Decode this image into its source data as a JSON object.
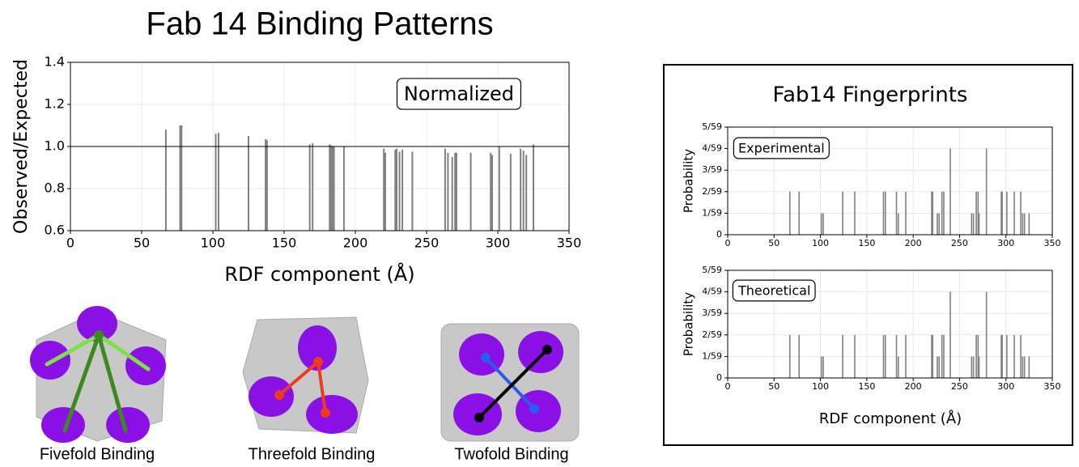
{
  "chart_data": [
    {
      "type": "bar",
      "title": "Fab 14 Binding Patterns",
      "y_label": "Observed/Expected",
      "x_label": "RDF component (Å)",
      "annotation": "Normalized",
      "color": "#808080",
      "grid": true,
      "reference_line": 1,
      "xlim": [
        0,
        350
      ],
      "xticks": [
        0,
        50,
        100,
        150,
        200,
        250,
        300,
        350
      ],
      "ylim": [
        0.6,
        1.4
      ],
      "yticks": [
        0.6,
        0.8,
        {
          "value": 1,
          "label": "1.0"
        },
        1.2,
        1.4
      ],
      "x": [
        67,
        77,
        78,
        102,
        104,
        125,
        137,
        138,
        168,
        170,
        182,
        183,
        184,
        185,
        192,
        220,
        221,
        228,
        229,
        231,
        233,
        240,
        263,
        265,
        268,
        270,
        271,
        281,
        295,
        296,
        301,
        309,
        316,
        318,
        320,
        325
      ],
      "values": [
        1.08,
        1.1,
        1.1,
        1.06,
        1.065,
        1.05,
        1.035,
        1.03,
        1.01,
        1.015,
        1.01,
        1.005,
        1.0,
        1.0,
        1.0,
        0.99,
        0.97,
        0.985,
        0.99,
        0.975,
        0.985,
        0.975,
        0.99,
        0.97,
        0.95,
        0.97,
        0.97,
        0.97,
        0.97,
        0.96,
        1.0,
        0.965,
        0.99,
        0.98,
        0.96,
        1.01
      ]
    },
    {
      "type": "bar",
      "title": "Fab14 Fingerprints",
      "y_label": "Probability",
      "annotation": "Experimental",
      "color": "#808080",
      "grid": true,
      "xlim": [
        0,
        350
      ],
      "xticks": [
        0,
        50,
        100,
        150,
        200,
        250,
        300,
        350
      ],
      "ylim": [
        0,
        0.0847
      ],
      "yticks": [
        0,
        {
          "value": 0.0169,
          "label": "1/59"
        },
        {
          "value": 0.0339,
          "label": "2/59"
        },
        {
          "value": 0.0508,
          "label": "3/59"
        },
        {
          "value": 0.0678,
          "label": "4/59"
        },
        {
          "value": 0.0847,
          "label": "5/59"
        }
      ],
      "x": [
        67,
        77,
        101,
        103,
        124,
        137,
        168,
        170,
        182,
        184,
        192,
        220,
        221,
        226,
        228,
        231,
        233,
        240,
        263,
        265,
        268,
        270,
        271,
        279,
        295,
        296,
        301,
        309,
        316,
        318,
        320,
        325
      ],
      "values": [
        0.0339,
        0.0339,
        0.0169,
        0.0169,
        0.0339,
        0.0339,
        0.0339,
        0.0339,
        0.0339,
        0.0169,
        0.0339,
        0.0339,
        0.0339,
        0.0169,
        0.0169,
        0.0339,
        0.0339,
        0.0678,
        0.0169,
        0.0169,
        0.0339,
        0.0339,
        0.0169,
        0.0678,
        0.0339,
        0.0339,
        0.0339,
        0.0339,
        0.0339,
        0.0169,
        0.0169,
        0.0169
      ]
    },
    {
      "type": "bar",
      "y_label": "Probability",
      "x_label": "RDF component (Å)",
      "annotation": "Theoretical",
      "color": "#808080",
      "grid": true,
      "xlim": [
        0,
        350
      ],
      "xticks": [
        0,
        50,
        100,
        150,
        200,
        250,
        300,
        350
      ],
      "ylim": [
        0,
        0.0847
      ],
      "yticks": [
        0,
        {
          "value": 0.0169,
          "label": "1/59"
        },
        {
          "value": 0.0339,
          "label": "2/59"
        },
        {
          "value": 0.0508,
          "label": "3/59"
        },
        {
          "value": 0.0678,
          "label": "4/59"
        },
        {
          "value": 0.0847,
          "label": "5/59"
        }
      ],
      "x": [
        67,
        77,
        101,
        103,
        124,
        137,
        168,
        170,
        182,
        184,
        192,
        220,
        221,
        226,
        228,
        231,
        233,
        240,
        263,
        265,
        268,
        270,
        271,
        279,
        295,
        296,
        301,
        309,
        316,
        318,
        320,
        325
      ],
      "values": [
        0.0339,
        0.0339,
        0.0169,
        0.0169,
        0.0339,
        0.0339,
        0.0339,
        0.0339,
        0.0339,
        0.0169,
        0.0339,
        0.0339,
        0.0339,
        0.0169,
        0.0169,
        0.0339,
        0.0339,
        0.0678,
        0.0169,
        0.0169,
        0.0339,
        0.0339,
        0.0169,
        0.0678,
        0.0339,
        0.0339,
        0.0339,
        0.0339,
        0.0339,
        0.0169,
        0.0169,
        0.0169
      ]
    }
  ],
  "diagrams": [
    {
      "label": "Fivefold Binding"
    },
    {
      "label": "Threefold Binding"
    },
    {
      "label": "Twofold Binding"
    }
  ]
}
